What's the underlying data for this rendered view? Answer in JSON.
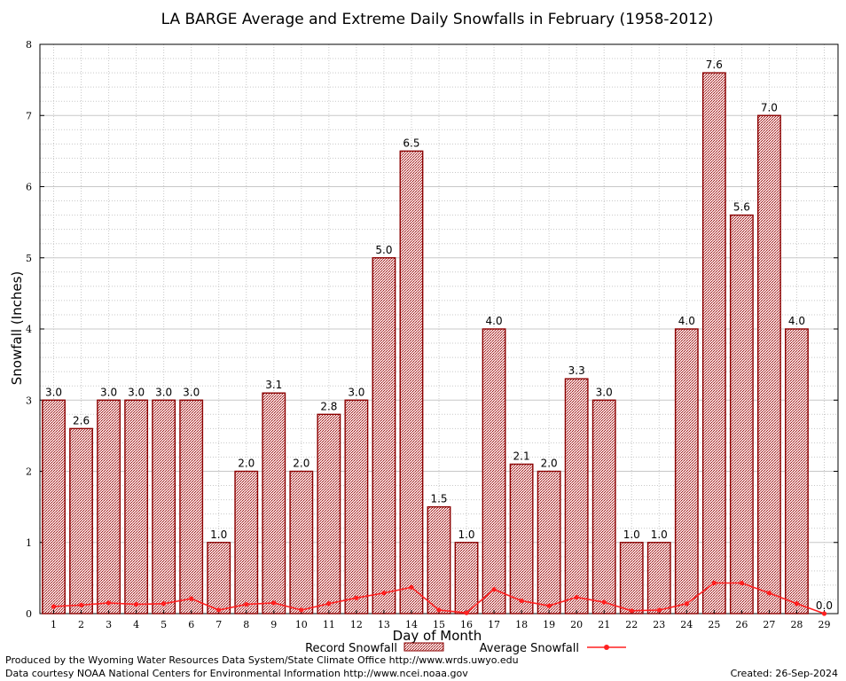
{
  "chart_data": {
    "type": "bar",
    "title": "LA BARGE Average and Extreme Daily Snowfalls in February (1958-2012)",
    "xlabel": "Day of Month",
    "ylabel": "Snowfall (Inches)",
    "ylim": [
      0,
      8
    ],
    "yticks": [
      "0",
      "1",
      "2",
      "3",
      "4",
      "5",
      "6",
      "7",
      "8"
    ],
    "grid": true,
    "categories": [
      "1",
      "2",
      "3",
      "4",
      "5",
      "6",
      "7",
      "8",
      "9",
      "10",
      "11",
      "12",
      "13",
      "14",
      "15",
      "16",
      "17",
      "18",
      "19",
      "20",
      "21",
      "22",
      "23",
      "24",
      "25",
      "26",
      "27",
      "28",
      "29"
    ],
    "series": [
      {
        "name": "Record Snowfall",
        "kind": "bar",
        "values": [
          3.0,
          2.6,
          3.0,
          3.0,
          3.0,
          3.0,
          1.0,
          2.0,
          3.1,
          2.0,
          2.8,
          3.0,
          5.0,
          6.5,
          1.5,
          1.0,
          4.0,
          2.1,
          2.0,
          3.3,
          3.0,
          1.0,
          1.0,
          4.0,
          7.6,
          5.6,
          7.0,
          4.0,
          0.0
        ],
        "labels": [
          "3.0",
          "2.6",
          "3.0",
          "3.0",
          "3.0",
          "3.0",
          "1.0",
          "2.0",
          "3.1",
          "2.0",
          "2.8",
          "3.0",
          "5.0",
          "6.5",
          "1.5",
          "1.0",
          "4.0",
          "2.1",
          "2.0",
          "3.3",
          "3.0",
          "1.0",
          "1.0",
          "4.0",
          "7.6",
          "5.6",
          "7.0",
          "4.0",
          "0.0"
        ]
      },
      {
        "name": "Average Snowfall",
        "kind": "line",
        "values": [
          0.1,
          0.12,
          0.15,
          0.13,
          0.14,
          0.21,
          0.05,
          0.13,
          0.15,
          0.05,
          0.14,
          0.22,
          0.29,
          0.37,
          0.05,
          0.01,
          0.34,
          0.18,
          0.11,
          0.23,
          0.16,
          0.04,
          0.05,
          0.14,
          0.43,
          0.43,
          0.29,
          0.14,
          0.0
        ]
      }
    ],
    "colors": {
      "bar_edge": "#8b0000",
      "bar_fill": "#b22222",
      "line": "#ff2020",
      "grid": "#c8c8c8"
    }
  },
  "footer": {
    "credit1": "Produced by the Wyoming Water Resources Data System/State Climate Office http://www.wrds.uwyo.edu",
    "credit2": "Data courtesy NOAA National Centers for Environmental Information http://www.ncei.noaa.gov",
    "created": "Created:  26-Sep-2024"
  }
}
